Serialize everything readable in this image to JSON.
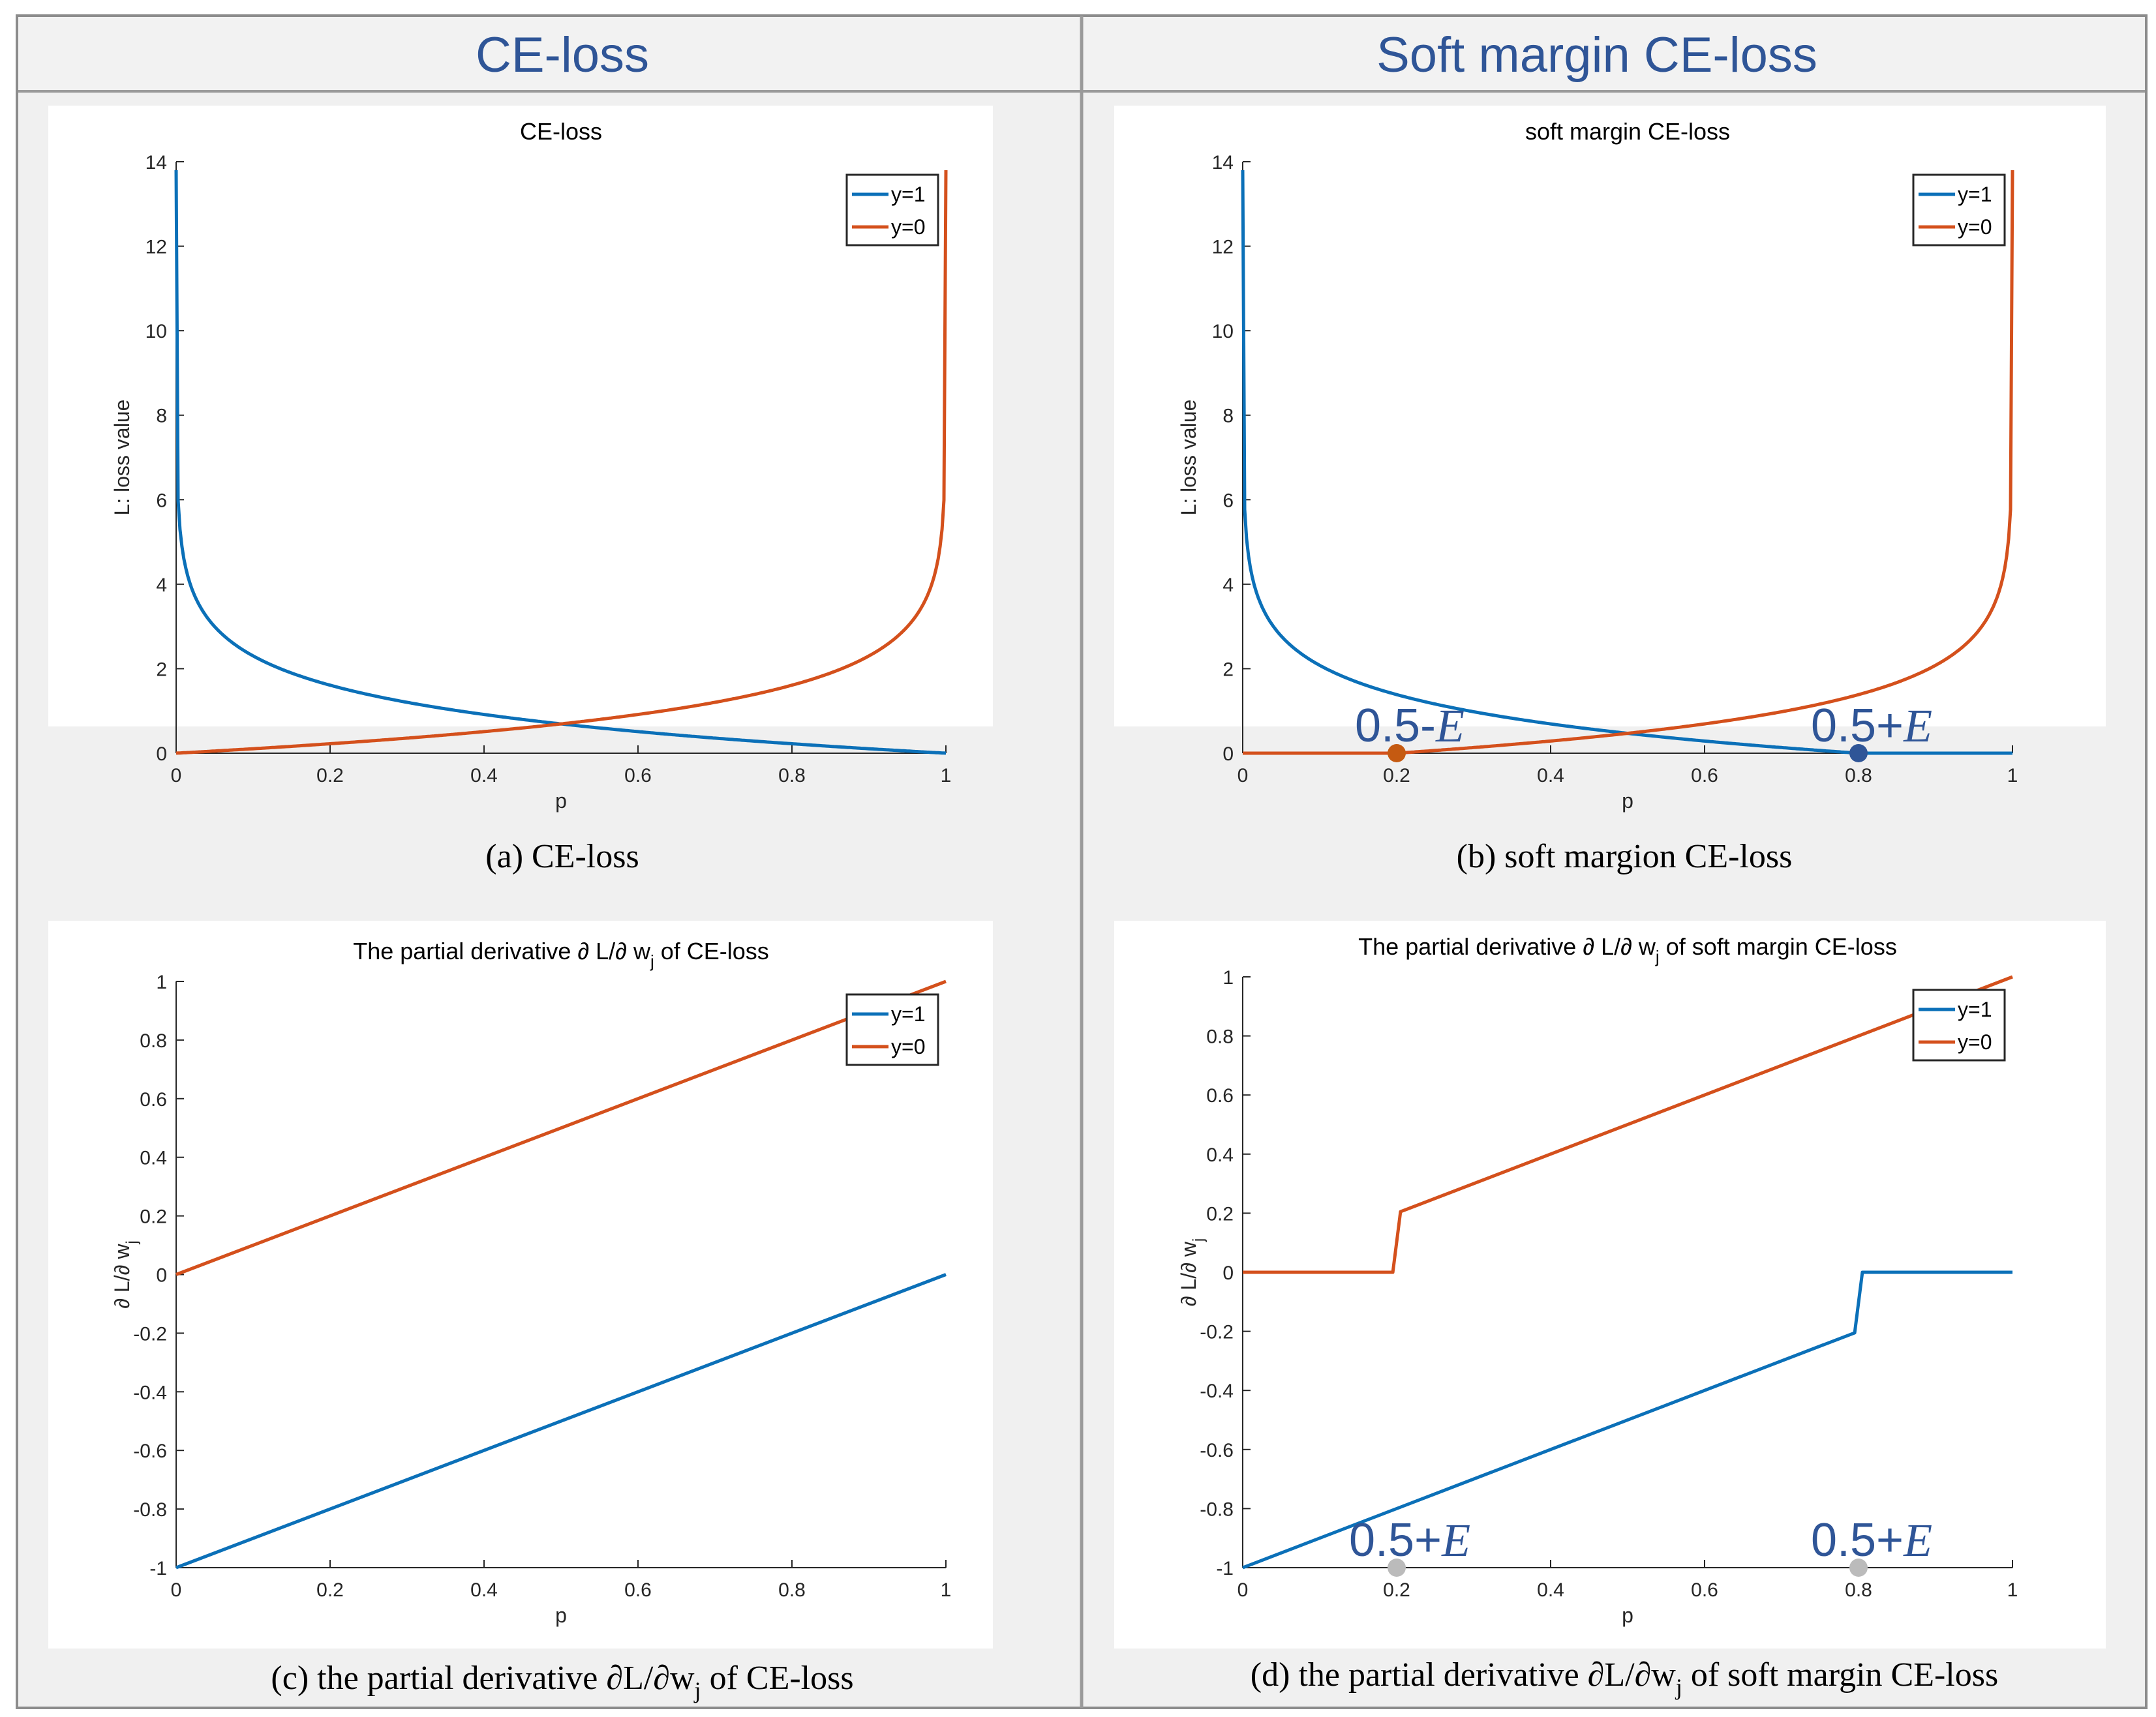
{
  "headers": {
    "left": "CE-loss",
    "right": "Soft margin CE-loss"
  },
  "colors": {
    "blue": "#0b70b8",
    "orange": "#d4501c",
    "header_text": "#2f5597",
    "header_bg": "#f2f2f2",
    "panel_bg": "#eeeeee",
    "border": "#9a9a9a",
    "annotation": "#2f5597",
    "marker_grey": "#bbbbbb",
    "marker_orange": "#c55a11",
    "marker_blue": "#2f5597"
  },
  "chart_data": [
    {
      "id": "a",
      "type": "line",
      "title": "CE-loss",
      "xlabel": "p",
      "ylabel": "L: loss value",
      "caption": "(a) CE-loss",
      "xlim": [
        0,
        1
      ],
      "ylim": [
        0,
        14
      ],
      "xticks": [
        "0",
        "0.2",
        "0.4",
        "0.6",
        "0.8",
        "1"
      ],
      "yticks": [
        "0",
        "2",
        "4",
        "6",
        "8",
        "10",
        "12",
        "14"
      ],
      "legend": {
        "position": "top-right",
        "entries": [
          "y=1",
          "y=0"
        ]
      },
      "series": [
        {
          "name": "y=1",
          "color": "blue",
          "formula": "-ln(p)",
          "values_at": {
            "x": [
              0.001,
              0.05,
              0.2,
              0.5,
              0.8,
              1
            ],
            "y": [
              13.8,
              3.0,
              1.61,
              0.69,
              0.22,
              0
            ]
          }
        },
        {
          "name": "y=0",
          "color": "orange",
          "formula": "-ln(1-p)",
          "values_at": {
            "x": [
              0,
              0.2,
              0.5,
              0.8,
              0.95,
              0.999
            ],
            "y": [
              0,
              0.22,
              0.69,
              1.61,
              3.0,
              13.8
            ]
          }
        }
      ],
      "annotations": []
    },
    {
      "id": "b",
      "type": "line",
      "title": "soft margin CE-loss",
      "xlabel": "p",
      "ylabel": "L: loss value",
      "caption": "(b) soft margion CE-loss",
      "xlim": [
        0,
        1
      ],
      "ylim": [
        0,
        14
      ],
      "xticks": [
        "0",
        "0.2",
        "0.4",
        "0.6",
        "0.8",
        "1"
      ],
      "yticks": [
        "0",
        "2",
        "4",
        "6",
        "8",
        "10",
        "12",
        "14"
      ],
      "legend": {
        "position": "top-right",
        "entries": [
          "y=1",
          "y=0"
        ]
      },
      "series": [
        {
          "name": "y=1",
          "color": "blue",
          "formula": "-ln(p/0.8) for p<0.8, else 0",
          "values_at": {
            "x": [
              0.001,
              0.2,
              0.5,
              0.8,
              1
            ],
            "y": [
              13.6,
              1.39,
              0.47,
              0,
              0
            ]
          }
        },
        {
          "name": "y=0",
          "color": "orange",
          "formula": "0 for p<0.2, else -ln((1-p)/0.8)",
          "values_at": {
            "x": [
              0,
              0.2,
              0.5,
              0.8,
              0.999
            ],
            "y": [
              0,
              0,
              0.47,
              1.39,
              13.6
            ]
          }
        }
      ],
      "annotations": [
        {
          "x": 0.2,
          "text": "0.5-",
          "sym": "E",
          "marker": "marker_orange"
        },
        {
          "x": 0.8,
          "text": "0.5+",
          "sym": "E",
          "marker": "marker_blue"
        }
      ]
    },
    {
      "id": "c",
      "type": "line",
      "title": "The partial derivative ∂ L/∂ w",
      "title_sub": "j",
      "title_rest": " of CE-loss",
      "xlabel": "p",
      "ylabel": "∂ L/∂ w",
      "ylabel_sub": "j",
      "caption": "(c) the partial derivative  ∂L/∂w",
      "caption_sub": "j",
      "caption_rest": " of CE-loss",
      "xlim": [
        0,
        1
      ],
      "ylim": [
        -1,
        1
      ],
      "xticks": [
        "0",
        "0.2",
        "0.4",
        "0.6",
        "0.8",
        "1"
      ],
      "yticks": [
        "-1",
        "-0.8",
        "-0.6",
        "-0.4",
        "-0.2",
        "0",
        "0.2",
        "0.4",
        "0.6",
        "0.8",
        "1"
      ],
      "legend": {
        "position": "top-right",
        "entries": [
          "y=1",
          "y=0"
        ]
      },
      "series": [
        {
          "name": "y=1",
          "color": "blue",
          "points": [
            [
              0,
              -1
            ],
            [
              1,
              0
            ]
          ]
        },
        {
          "name": "y=0",
          "color": "orange",
          "points": [
            [
              0,
              0
            ],
            [
              1,
              1
            ]
          ]
        }
      ],
      "annotations": []
    },
    {
      "id": "d",
      "type": "line",
      "title": "The partial derivative ∂ L/∂ w",
      "title_sub": "j",
      "title_rest": " of soft margin CE-loss",
      "xlabel": "p",
      "ylabel": "∂ L/∂ w",
      "ylabel_sub": "j",
      "caption": "(d) the partial derivative  ∂L/∂w",
      "caption_sub": "j",
      "caption_rest": " of soft margin CE-loss",
      "xlim": [
        0,
        1
      ],
      "ylim": [
        -1,
        1
      ],
      "xticks": [
        "0",
        "0.2",
        "0.4",
        "0.6",
        "0.8",
        "1"
      ],
      "yticks": [
        "-1",
        "-0.8",
        "-0.6",
        "-0.4",
        "-0.2",
        "0",
        "0.2",
        "0.4",
        "0.6",
        "0.8",
        "1"
      ],
      "legend": {
        "position": "top-right",
        "entries": [
          "y=1",
          "y=0"
        ]
      },
      "series": [
        {
          "name": "y=1",
          "color": "blue",
          "points": [
            [
              0,
              -1
            ],
            [
              0.795,
              -0.205
            ],
            [
              0.805,
              0
            ],
            [
              1,
              0
            ]
          ]
        },
        {
          "name": "y=0",
          "color": "orange",
          "points": [
            [
              0,
              0
            ],
            [
              0.195,
              0
            ],
            [
              0.205,
              0.205
            ],
            [
              1,
              1
            ]
          ]
        }
      ],
      "annotations": [
        {
          "x": 0.2,
          "text": "0.5+",
          "sym": "E",
          "marker": "marker_grey"
        },
        {
          "x": 0.8,
          "text": "0.5+",
          "sym": "E",
          "marker": "marker_grey"
        }
      ]
    }
  ]
}
